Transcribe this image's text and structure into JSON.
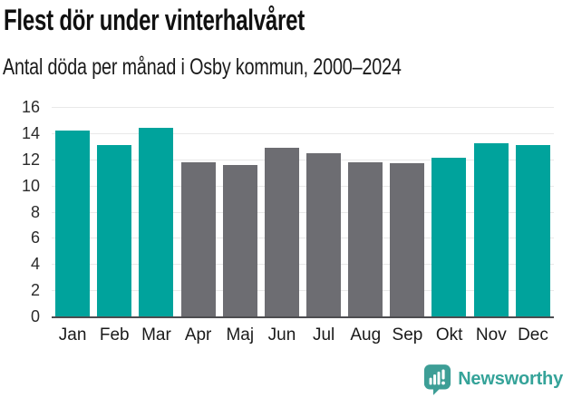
{
  "header": {
    "title": "Flest dör under vinterhalvåret",
    "subtitle": "Antal döda per månad i Osby kommun, 2000–2024"
  },
  "chart_data": {
    "type": "bar",
    "title": "Flest dör under vinterhalvåret",
    "subtitle": "Antal döda per månad i Osby kommun, 2000–2024",
    "categories": [
      "Jan",
      "Feb",
      "Mar",
      "Apr",
      "Maj",
      "Jun",
      "Jul",
      "Aug",
      "Sep",
      "Okt",
      "Nov",
      "Dec"
    ],
    "values": [
      14.2,
      13.1,
      14.4,
      11.8,
      11.6,
      12.9,
      12.5,
      11.8,
      11.7,
      12.1,
      13.2,
      13.1
    ],
    "highlighted": [
      true,
      true,
      true,
      false,
      false,
      false,
      false,
      false,
      false,
      true,
      true,
      true
    ],
    "xlabel": "",
    "ylabel": "",
    "ylim": [
      0,
      16
    ],
    "yticks": [
      0,
      2,
      4,
      6,
      8,
      10,
      12,
      14,
      16
    ],
    "grid": true,
    "legend": false,
    "colors": {
      "highlight": "#00a39c",
      "muted": "#6d6d72",
      "gridline": "#e9e9e9",
      "axis_line": "#4d4d50",
      "brand": "#35a399"
    }
  },
  "footer": {
    "brand": "Newsworthy"
  }
}
